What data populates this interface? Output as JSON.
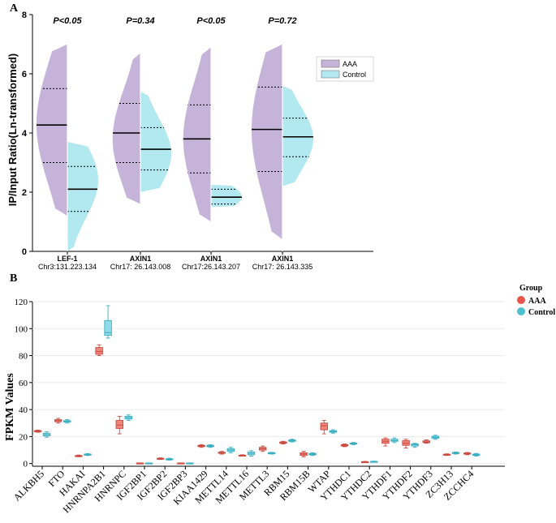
{
  "chart_data": [
    {
      "type": "split-violin",
      "panel_label": "A",
      "ylabel": "IP/Input Ratio(Ln-transformed)",
      "ylim": [
        0,
        8
      ],
      "yticks": [
        0,
        2,
        4,
        6,
        8
      ],
      "legend": {
        "placement": "top-right",
        "entries": [
          {
            "name": "AAA",
            "color": "#c5b3d9"
          },
          {
            "name": "Control",
            "color": "#b2e8ef"
          }
        ]
      },
      "groups": [
        {
          "name": "LEF-1",
          "locus": "Chr3:131,223,134",
          "pvalue": "P<0.05",
          "AAA": {
            "min": 1.2,
            "max": 7.0,
            "q1": 3.0,
            "median": 4.27,
            "q3": 5.5,
            "peak": 4.3,
            "width": 1.0
          },
          "Control": {
            "min": 0.0,
            "max": 3.7,
            "q1": 1.35,
            "median": 2.1,
            "q3": 2.87,
            "peak": 2.4,
            "width": 1.0
          }
        },
        {
          "name": "AXIN1",
          "locus": "Chr17: 26,143,008",
          "pvalue": "P=0.34",
          "AAA": {
            "min": 1.6,
            "max": 6.7,
            "q1": 3.0,
            "median": 4.0,
            "q3": 5.0,
            "peak": 3.8,
            "width": 0.9
          },
          "Control": {
            "min": 2.0,
            "max": 5.4,
            "q1": 2.75,
            "median": 3.45,
            "q3": 4.18,
            "peak": 3.3,
            "width": 1.0
          }
        },
        {
          "name": "AXIN1",
          "locus": "Chr17:26,143,207",
          "pvalue": "P<0.05",
          "AAA": {
            "min": 1.0,
            "max": 6.9,
            "q1": 2.65,
            "median": 3.8,
            "q3": 4.95,
            "peak": 3.8,
            "width": 0.9
          },
          "Control": {
            "min": 1.5,
            "max": 2.25,
            "q1": 1.6,
            "median": 1.83,
            "q3": 2.1,
            "peak": 1.85,
            "width": 1.0
          }
        },
        {
          "name": "AXIN1",
          "locus": "Chr17: 26,143,335",
          "pvalue": "P=0.72",
          "AAA": {
            "min": 0.4,
            "max": 7.0,
            "q1": 2.7,
            "median": 4.12,
            "q3": 5.55,
            "peak": 4.1,
            "width": 1.0
          },
          "Control": {
            "min": 2.2,
            "max": 5.6,
            "q1": 3.2,
            "median": 3.87,
            "q3": 4.5,
            "peak": 3.8,
            "width": 1.0
          }
        }
      ]
    },
    {
      "type": "boxplot",
      "panel_label": "B",
      "ylabel": "FPKM Values",
      "ylim": [
        0,
        120
      ],
      "yticks": [
        0,
        20,
        40,
        60,
        80,
        100,
        120
      ],
      "legend": {
        "title": "Group",
        "placement": "top-right",
        "entries": [
          {
            "name": "AAA",
            "color": "#e8554a"
          },
          {
            "name": "Control",
            "color": "#4cbfd0"
          }
        ]
      },
      "genes": [
        {
          "name": "ALKBH5",
          "AAA": [
            23.2,
            23.6,
            24.0,
            24.4,
            24.8
          ],
          "Control": [
            19.5,
            20.5,
            21.5,
            22.5,
            23.5
          ]
        },
        {
          "name": "FTO",
          "AAA": [
            30.0,
            31.0,
            31.8,
            32.5,
            33.5
          ],
          "Control": [
            30.0,
            30.8,
            31.3,
            31.8,
            32.5
          ]
        },
        {
          "name": "HAKAI",
          "AAA": [
            5.0,
            5.3,
            5.6,
            5.9,
            6.3
          ],
          "Control": [
            6.0,
            6.3,
            6.7,
            7.0,
            7.4
          ]
        },
        {
          "name": "HNRNPA2B1",
          "AAA": [
            80.0,
            81.0,
            83.0,
            86.0,
            88.0
          ],
          "Control": [
            93.0,
            95.0,
            97.0,
            106.0,
            117.0
          ]
        },
        {
          "name": "HNRNPC",
          "AAA": [
            22.0,
            26.0,
            28.5,
            32.0,
            35.0
          ],
          "Control": [
            32.0,
            33.0,
            34.0,
            35.0,
            36.0
          ]
        },
        {
          "name": "IGF2BP1",
          "AAA": [
            0.1,
            0.2,
            0.3,
            0.4,
            0.5
          ],
          "Control": [
            0.1,
            0.2,
            0.3,
            0.4,
            0.5
          ]
        },
        {
          "name": "IGF2BP2",
          "AAA": [
            3.0,
            3.3,
            3.6,
            3.9,
            4.2
          ],
          "Control": [
            2.5,
            2.9,
            3.2,
            3.5,
            3.9
          ]
        },
        {
          "name": "IGF2BP3",
          "AAA": [
            0.1,
            0.2,
            0.3,
            0.4,
            0.5
          ],
          "Control": [
            0.1,
            0.2,
            0.3,
            0.4,
            0.5
          ]
        },
        {
          "name": "KIAA1429",
          "AAA": [
            12.0,
            12.6,
            13.0,
            13.5,
            14.0
          ],
          "Control": [
            12.0,
            12.5,
            13.0,
            13.5,
            14.0
          ]
        },
        {
          "name": "METTL14",
          "AAA": [
            7.0,
            7.6,
            8.0,
            8.4,
            9.0
          ],
          "Control": [
            8.0,
            9.0,
            10.0,
            11.0,
            12.0
          ]
        },
        {
          "name": "METTL16",
          "AAA": [
            5.5,
            5.8,
            6.0,
            6.2,
            6.5
          ],
          "Control": [
            5.5,
            6.5,
            7.5,
            8.5,
            9.5
          ]
        },
        {
          "name": "METTL3",
          "AAA": [
            9.0,
            10.0,
            11.0,
            12.0,
            13.0
          ],
          "Control": [
            7.0,
            7.4,
            7.7,
            8.0,
            8.3
          ]
        },
        {
          "name": "RBM15",
          "AAA": [
            14.5,
            15.0,
            15.5,
            16.0,
            16.5
          ],
          "Control": [
            16.0,
            16.5,
            17.0,
            17.5,
            18.0
          ]
        },
        {
          "name": "RBM15B",
          "AAA": [
            5.0,
            6.0,
            7.0,
            8.0,
            9.0
          ],
          "Control": [
            6.0,
            6.5,
            7.0,
            7.5,
            8.0
          ]
        },
        {
          "name": "WTAP",
          "AAA": [
            22.0,
            25.0,
            28.0,
            30.0,
            32.0
          ],
          "Control": [
            22.5,
            23.2,
            23.8,
            24.3,
            25.0
          ]
        },
        {
          "name": "YTHDC1",
          "AAA": [
            12.5,
            13.0,
            13.5,
            14.0,
            14.5
          ],
          "Control": [
            14.0,
            14.4,
            14.8,
            15.2,
            15.6
          ]
        },
        {
          "name": "YTHDC2",
          "AAA": [
            0.8,
            1.0,
            1.2,
            1.4,
            1.6
          ],
          "Control": [
            1.0,
            1.2,
            1.4,
            1.6,
            1.8
          ]
        },
        {
          "name": "YTHDF1",
          "AAA": [
            13.0,
            15.0,
            16.5,
            18.0,
            19.0
          ],
          "Control": [
            15.5,
            16.5,
            17.0,
            18.0,
            19.0
          ]
        },
        {
          "name": "YTHDF2",
          "AAA": [
            11.5,
            13.5,
            15.0,
            17.0,
            18.0
          ],
          "Control": [
            12.0,
            13.0,
            14.0,
            14.5,
            15.0
          ]
        },
        {
          "name": "YTHDF3",
          "AAA": [
            15.0,
            15.5,
            16.0,
            16.8,
            17.5
          ],
          "Control": [
            18.0,
            18.8,
            19.5,
            20.2,
            21.0
          ]
        },
        {
          "name": "ZC3H13",
          "AAA": [
            6.0,
            6.3,
            6.6,
            6.9,
            7.2
          ],
          "Control": [
            7.0,
            7.4,
            7.8,
            8.2,
            8.6
          ]
        },
        {
          "name": "ZCCHC4",
          "AAA": [
            6.5,
            7.0,
            7.4,
            7.8,
            8.2
          ],
          "Control": [
            5.5,
            6.0,
            6.5,
            7.0,
            7.5
          ]
        }
      ]
    }
  ]
}
